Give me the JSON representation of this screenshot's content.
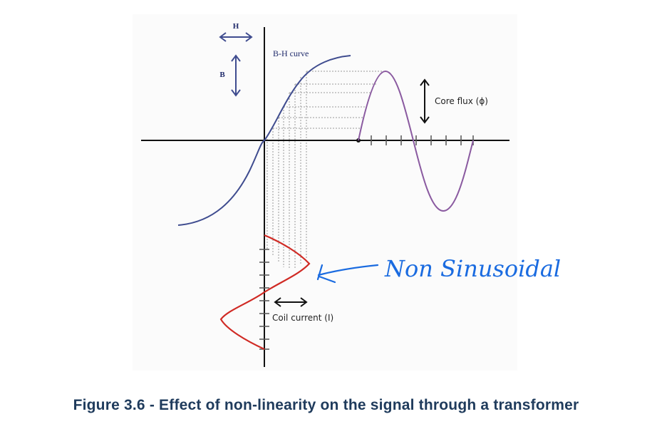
{
  "diagram": {
    "h_label": "H",
    "b_label": "B",
    "bh_label": "B-H curve",
    "flux_label": "Core flux (ϕ)",
    "current_label": "Coil current (I)",
    "annotation": "Non Sinusoidal",
    "colors": {
      "bh_curve": "#3f4c8f",
      "flux_wave": "#8a5aa0",
      "current_wave": "#d02a24",
      "annotation": "#1a6be0",
      "caption": "#1f3b5c"
    }
  },
  "caption": "Figure 3.6 - Effect of non-linearity on the signal through a transformer"
}
